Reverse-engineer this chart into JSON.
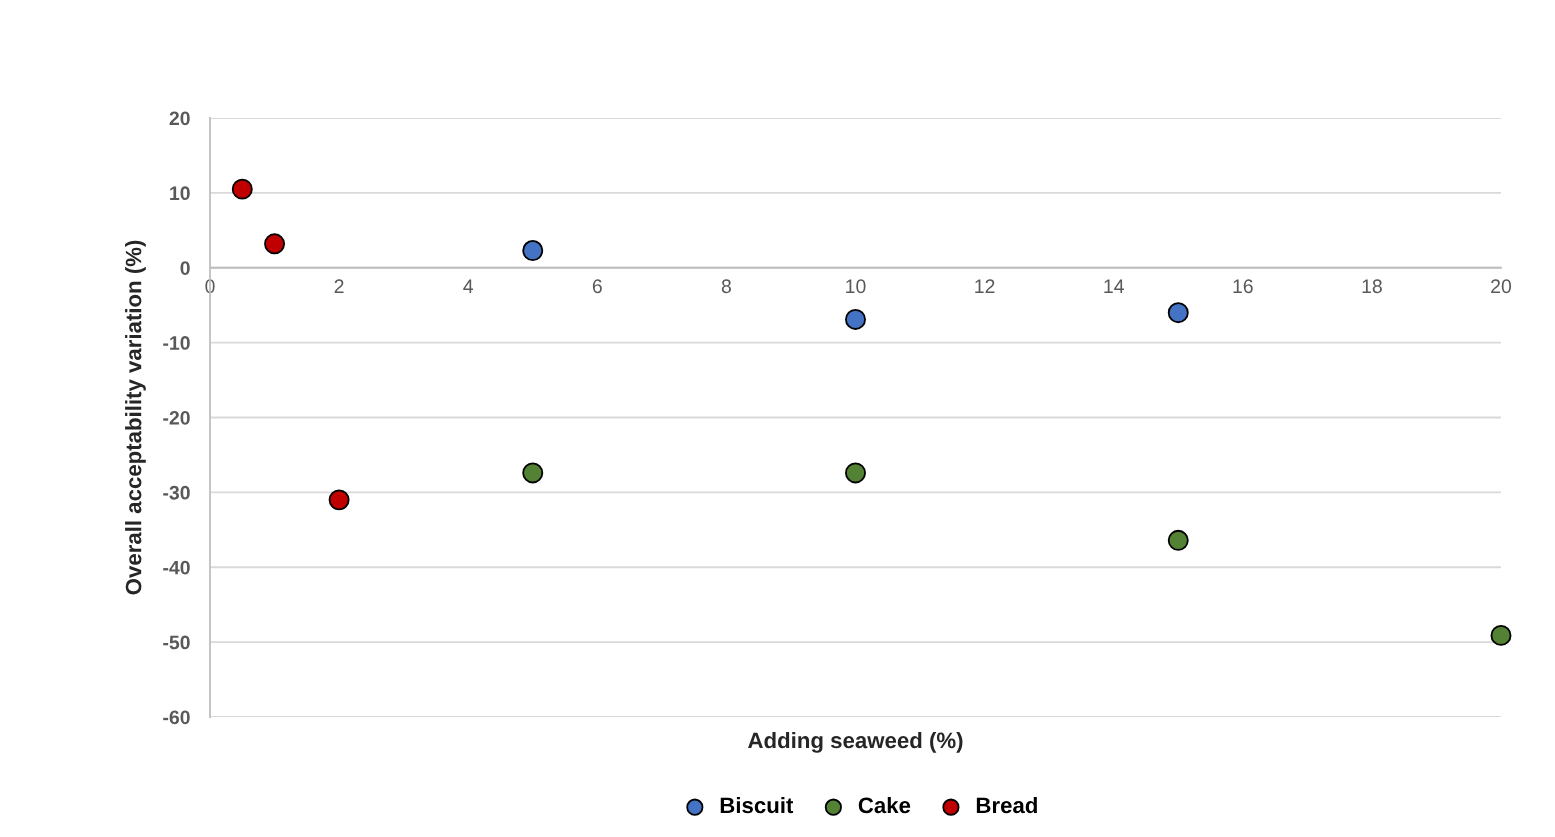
{
  "chart_data": {
    "type": "scatter",
    "xlabel": "Adding seaweed (%)",
    "ylabel": "Overall acceptability variation (%)",
    "xlim": [
      0,
      20
    ],
    "xticks": [
      0,
      2,
      4,
      6,
      8,
      10,
      12,
      14,
      16,
      18,
      20
    ],
    "ylim": [
      -60,
      20
    ],
    "yticks": [
      -60,
      -50,
      -40,
      -30,
      -20,
      -10,
      0,
      10,
      20
    ],
    "grid": "y",
    "legend": "bottom",
    "marker": "circle",
    "series": [
      {
        "name": "Biscuit",
        "color": "#4472c4",
        "x": [
          5,
          10,
          15
        ],
        "values": [
          2.3,
          -6.9,
          -6.0
        ]
      },
      {
        "name": "Cake",
        "color": "#548235",
        "x": [
          5,
          10,
          15,
          20
        ],
        "values": [
          -27.4,
          -27.4,
          -36.4,
          -49.1
        ]
      },
      {
        "name": "Bread",
        "color": "#c00000",
        "x": [
          0.5,
          1,
          2
        ],
        "values": [
          10.5,
          3.2,
          -31.0
        ]
      }
    ]
  }
}
